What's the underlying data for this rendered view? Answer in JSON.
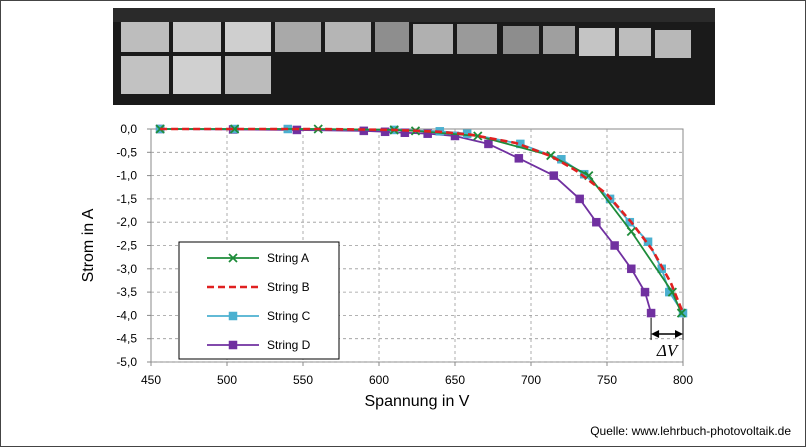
{
  "source_text": "Quelle: www.lehrbuch-photovoltaik.de",
  "photo": {
    "caption": ""
  },
  "chart_data": {
    "type": "line",
    "title": "",
    "xlabel": "Spannung in V",
    "ylabel": "Strom in A",
    "xlim": [
      450,
      800
    ],
    "ylim": [
      -5,
      0
    ],
    "x_ticks": [
      450,
      500,
      550,
      600,
      650,
      700,
      750,
      800
    ],
    "y_ticks": [
      0,
      -0.5,
      -1,
      -1.5,
      -2,
      -2.5,
      -3,
      -3.5,
      -4,
      -4.5,
      -5
    ],
    "y_tick_labels": [
      "0,0",
      "-0,5",
      "-1,0",
      "-1,5",
      "-2,0",
      "-2,5",
      "-3,0",
      "-3,5",
      "-4,0",
      "-4,5",
      "-5,0"
    ],
    "grid": true,
    "legend_position": "lower-left",
    "annotation": "ΔV",
    "series": [
      {
        "name": "String A",
        "color": "#1e8c3a",
        "marker": "x",
        "dash": "solid",
        "points": [
          [
            456,
            0.0
          ],
          [
            505,
            0.0
          ],
          [
            560,
            0.0
          ],
          [
            610,
            -0.02
          ],
          [
            624,
            -0.04
          ],
          [
            665,
            -0.15
          ],
          [
            713,
            -0.57
          ],
          [
            738,
            -1.0
          ],
          [
            766,
            -2.2
          ],
          [
            793,
            -3.5
          ],
          [
            799,
            -3.95
          ]
        ]
      },
      {
        "name": "String B",
        "color": "#e02020",
        "marker": "none",
        "dash": "dashed",
        "points": [
          [
            456,
            0.0
          ],
          [
            505,
            0.0
          ],
          [
            560,
            0.0
          ],
          [
            610,
            -0.02
          ],
          [
            640,
            -0.06
          ],
          [
            660,
            -0.12
          ],
          [
            690,
            -0.3
          ],
          [
            713,
            -0.58
          ],
          [
            730,
            -0.9
          ],
          [
            750,
            -1.4
          ],
          [
            766,
            -2.0
          ],
          [
            780,
            -2.6
          ],
          [
            792,
            -3.3
          ],
          [
            800,
            -3.95
          ]
        ]
      },
      {
        "name": "String C",
        "color": "#4bb0d0",
        "marker": "square",
        "dash": "solid",
        "points": [
          [
            456,
            0.0
          ],
          [
            505,
            0.0
          ],
          [
            540,
            0.0
          ],
          [
            610,
            -0.02
          ],
          [
            640,
            -0.05
          ],
          [
            658,
            -0.1
          ],
          [
            693,
            -0.32
          ],
          [
            720,
            -0.65
          ],
          [
            735,
            -0.97
          ],
          [
            752,
            -1.5
          ],
          [
            765,
            -2.0
          ],
          [
            777,
            -2.42
          ],
          [
            786,
            -3.0
          ],
          [
            791,
            -3.5
          ],
          [
            800,
            -3.95
          ]
        ]
      },
      {
        "name": "String D",
        "color": "#7030a0",
        "marker": "square",
        "dash": "solid",
        "points": [
          [
            456,
            0.0
          ],
          [
            504,
            -0.01
          ],
          [
            546,
            -0.02
          ],
          [
            590,
            -0.04
          ],
          [
            604,
            -0.06
          ],
          [
            617,
            -0.08
          ],
          [
            632,
            -0.1
          ],
          [
            650,
            -0.15
          ],
          [
            672,
            -0.32
          ],
          [
            692,
            -0.63
          ],
          [
            715,
            -1.0
          ],
          [
            732,
            -1.5
          ],
          [
            743,
            -2.0
          ],
          [
            755,
            -2.5
          ],
          [
            766,
            -3.0
          ],
          [
            775,
            -3.5
          ],
          [
            779,
            -3.95
          ]
        ]
      }
    ]
  }
}
